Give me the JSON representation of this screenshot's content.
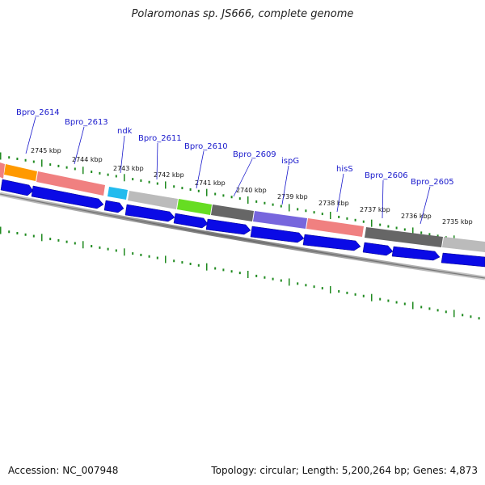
{
  "title": "Polaromonas sp. JS666, complete genome",
  "footer": {
    "accession": "Accession: NC_007948",
    "summary": "Topology: circular; Length: 5,200,264 bp; Genes: 4,873"
  },
  "colors": {
    "gene_label": "#1a1acc",
    "tick": "#1f8a1f",
    "cds_arrow": "#0a0ae6",
    "backbone": "#8a8a8a"
  },
  "kbp_labels": [
    "2745 kbp",
    "2744 kbp",
    "2743 kbp",
    "2742 kbp",
    "2741 kbp",
    "2740 kbp",
    "2739 kbp",
    "2738 kbp",
    "2737 kbp",
    "2736 kbp",
    "2735 kbp"
  ],
  "gene_labels": [
    "Bpro_2614",
    "Bpro_2613",
    "ndk",
    "Bpro_2611",
    "Bpro_2610",
    "Bpro_2609",
    "ispG",
    "hisS",
    "Bpro_2606",
    "Bpro_2605"
  ],
  "cog_blocks": [
    {
      "name": "cog-block-red-left",
      "color": "#f08080"
    },
    {
      "name": "cog-block-orange",
      "color": "#ff9900"
    },
    {
      "name": "cog-block-salmon-1",
      "color": "#f08080"
    },
    {
      "name": "cog-block-cyan",
      "color": "#22bbee"
    },
    {
      "name": "cog-block-gray-1",
      "color": "#bbbbbb"
    },
    {
      "name": "cog-block-green",
      "color": "#66dd22"
    },
    {
      "name": "cog-block-darkgray-1",
      "color": "#666666"
    },
    {
      "name": "cog-block-purple",
      "color": "#7766dd"
    },
    {
      "name": "cog-block-salmon-2",
      "color": "#f08080"
    },
    {
      "name": "cog-block-darkgray-2",
      "color": "#666666"
    },
    {
      "name": "cog-block-gray-2",
      "color": "#bbbbbb"
    }
  ]
}
